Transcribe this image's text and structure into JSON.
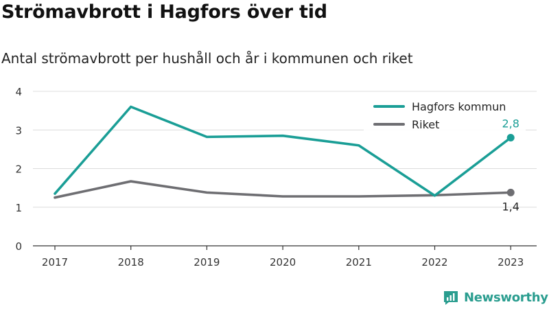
{
  "title": "Strömavbrott i Hagfors över tid",
  "subtitle": "Antal strömavbrott per hushåll och år i kommunen och riket",
  "brand": {
    "name": "Newsworthy",
    "color": "#2a9d8f"
  },
  "chart_data": {
    "type": "line",
    "x": [
      "2017",
      "2018",
      "2019",
      "2020",
      "2021",
      "2022",
      "2023"
    ],
    "ylim": [
      0,
      4
    ],
    "yticks": [
      "0",
      "1",
      "2",
      "3",
      "4"
    ],
    "grid": true,
    "legend_position": "top-right",
    "series": [
      {
        "name": "Hagfors kommun",
        "color": "#1a9e96",
        "values": [
          1.35,
          3.6,
          2.82,
          2.85,
          2.6,
          1.3,
          2.8
        ],
        "end_label": "2,8"
      },
      {
        "name": "Riket",
        "color": "#6e6e72",
        "values": [
          1.25,
          1.67,
          1.38,
          1.28,
          1.28,
          1.31,
          1.38
        ],
        "end_label": "1,4"
      }
    ]
  }
}
